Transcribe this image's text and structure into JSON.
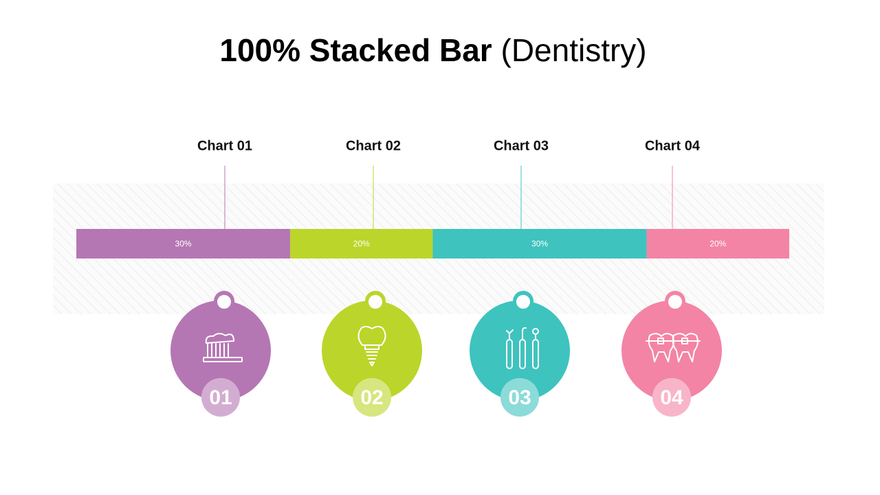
{
  "chart_data": {
    "type": "stacked-bar",
    "title": "100% Stacked Bar",
    "subtitle": "(Dentistry)",
    "xlim": [
      0,
      100
    ],
    "series": [
      {
        "name": "Chart 01",
        "color": "#b577b3",
        "values": [
          30
        ],
        "value_labels": [
          "30%"
        ]
      },
      {
        "name": "Chart 02",
        "color": "#bcd52a",
        "values": [
          20
        ],
        "value_labels": [
          "20%"
        ]
      },
      {
        "name": "Chart 03",
        "color": "#3ec3bf",
        "values": [
          30
        ],
        "value_labels": [
          "30%"
        ]
      },
      {
        "name": "Chart 04",
        "color": "#f384a5",
        "values": [
          20
        ],
        "value_labels": [
          "20%"
        ]
      }
    ]
  },
  "badges": [
    "01",
    "02",
    "03",
    "04"
  ]
}
